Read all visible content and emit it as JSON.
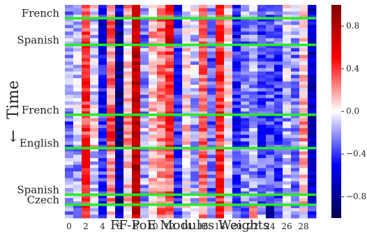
{
  "chart_data": {
    "type": "heatmap",
    "xlabel": "FF-PoE Modules Weights",
    "ylabel": "Time",
    "ylabel_arrow": "←",
    "x_ticks": [
      "0",
      "2",
      "4",
      "6",
      "8",
      "10",
      "12",
      "14",
      "16",
      "18",
      "20",
      "22",
      "24",
      "26",
      "28"
    ],
    "n_columns": 30,
    "n_rows": 64,
    "row_order": "top = earliest, bottom = latest (time flows downward)",
    "colormap": "seismic (blue-white-red)",
    "vmin": -1,
    "vmax": 1,
    "colorbar_ticks": [
      "0.8",
      "0.4",
      "0.0",
      "−0.4",
      "−0.8"
    ],
    "language_boundaries": [
      {
        "label": "French",
        "row": 4
      },
      {
        "label": "Spanish",
        "row": 12
      },
      {
        "label": "French",
        "row": 33
      },
      {
        "label": "English",
        "row": 43
      },
      {
        "label": "Spanish",
        "row": 57
      },
      {
        "label": "Czech",
        "row": 60
      }
    ],
    "boundary_color": "#22ee22",
    "column_mean_weights": [
      -0.2,
      -0.1,
      0.45,
      -0.05,
      -0.5,
      0.25,
      -0.8,
      0.1,
      0.75,
      -0.2,
      0.1,
      0.25,
      0.35,
      -0.4,
      0.05,
      -0.15,
      0.3,
      -0.3,
      0.45,
      0.05,
      -0.45,
      -0.25,
      -0.2,
      -0.35,
      -0.3,
      -0.4,
      -0.1,
      -0.25,
      0.1,
      -0.65
    ],
    "segment_mean_weights": [
      {
        "segment": "French (first)",
        "rows": "0-3",
        "values": [
          -0.3,
          -0.1,
          0.35,
          0.0,
          -0.5,
          0.2,
          -0.6,
          0.2,
          0.6,
          -0.2,
          0.0,
          0.2,
          0.4,
          -0.5,
          0.0,
          0.0,
          0.3,
          -0.2,
          0.4,
          0.1,
          -0.4,
          -0.2,
          -0.1,
          -0.3,
          -0.3,
          -0.3,
          0.0,
          -0.2,
          0.1,
          -0.6
        ]
      },
      {
        "segment": "Spanish",
        "rows": "4-11",
        "values": [
          -0.2,
          -0.2,
          0.4,
          -0.1,
          -0.6,
          0.3,
          -0.8,
          0.0,
          0.7,
          -0.3,
          0.2,
          0.3,
          0.6,
          -0.4,
          0.0,
          -0.1,
          0.3,
          -0.3,
          0.4,
          0.1,
          -0.5,
          -0.3,
          -0.2,
          -0.4,
          -0.3,
          -0.3,
          -0.1,
          -0.2,
          0.1,
          -0.6
        ]
      },
      {
        "segment": "French (second)",
        "rows": "33-42",
        "values": [
          -0.3,
          0.0,
          0.4,
          0.1,
          -0.4,
          0.4,
          -0.9,
          0.2,
          0.8,
          -0.1,
          0.1,
          0.3,
          0.5,
          -0.4,
          0.1,
          -0.2,
          0.3,
          -0.3,
          0.4,
          0.0,
          -0.5,
          -0.3,
          -0.2,
          -0.4,
          -0.4,
          -0.4,
          -0.2,
          -0.3,
          0.2,
          -0.7
        ]
      },
      {
        "segment": "English",
        "rows": "43-56",
        "values": [
          -0.2,
          -0.2,
          0.5,
          -0.1,
          -0.4,
          0.2,
          -0.7,
          0.1,
          0.8,
          -0.2,
          0.1,
          0.2,
          0.3,
          -0.4,
          0.0,
          -0.2,
          0.3,
          -0.3,
          0.5,
          0.0,
          -0.4,
          -0.2,
          -0.2,
          -0.3,
          -0.3,
          -0.4,
          -0.1,
          -0.3,
          0.1,
          -0.6
        ]
      },
      {
        "segment": "Czech",
        "rows": "60-63",
        "values": [
          -0.2,
          -0.3,
          0.4,
          -0.2,
          -0.4,
          0.1,
          -0.6,
          0.0,
          0.7,
          -0.2,
          0.0,
          0.3,
          0.3,
          -0.3,
          0.0,
          -0.1,
          0.2,
          -0.2,
          0.4,
          0.1,
          -0.3,
          -0.3,
          0.3,
          -0.2,
          -0.9,
          -0.4,
          0.0,
          -0.2,
          0.0,
          -0.4
        ]
      }
    ]
  }
}
